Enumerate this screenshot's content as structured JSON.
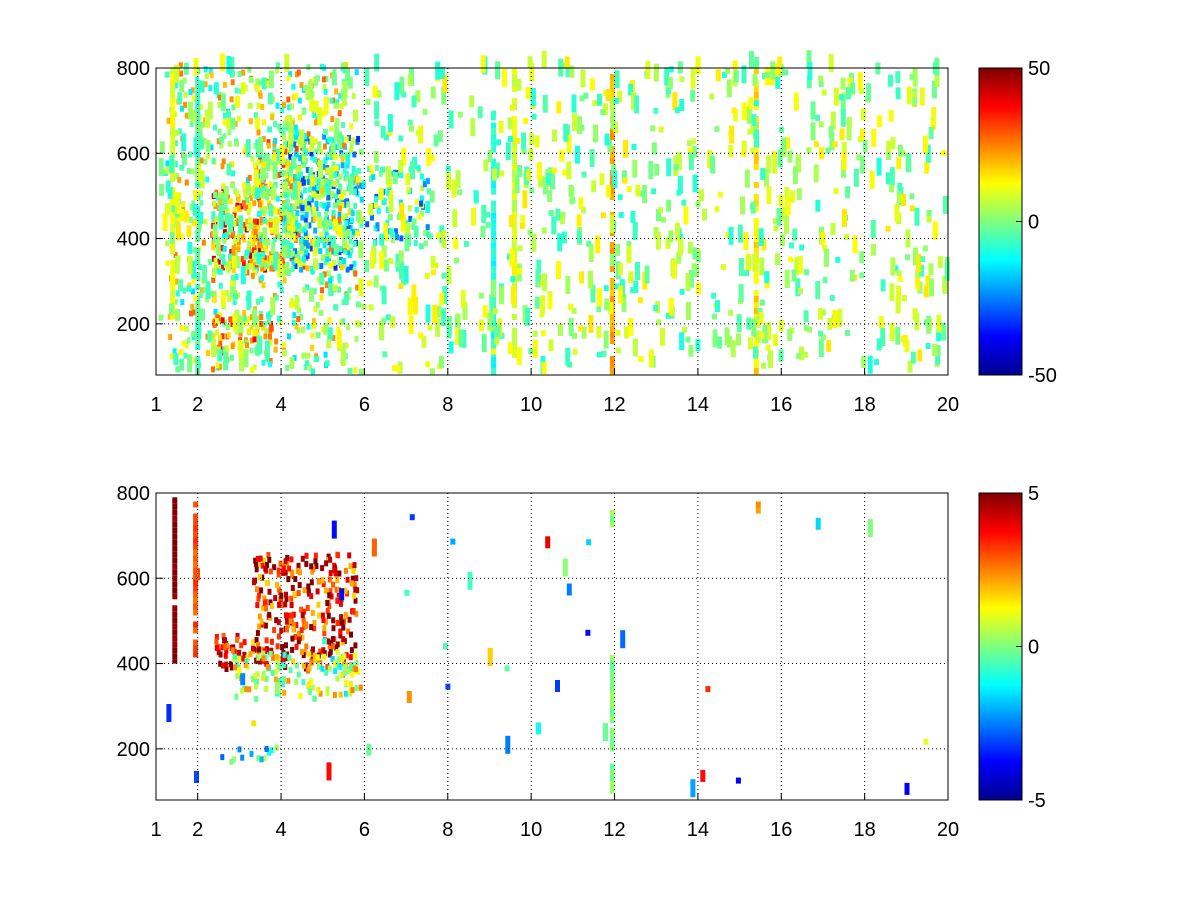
{
  "chart_data": [
    {
      "type": "heatmap",
      "title": "",
      "xlabel": "",
      "ylabel": "",
      "xlim": [
        1,
        20
      ],
      "ylim": [
        80,
        800
      ],
      "x_ticks": [
        1,
        2,
        4,
        6,
        8,
        10,
        12,
        14,
        16,
        18,
        20
      ],
      "x_tick_labels": [
        "1",
        "2",
        "4",
        "6",
        "8",
        "10",
        "12",
        "14",
        "16",
        "18",
        "20"
      ],
      "y_ticks": [
        200,
        400,
        600,
        800
      ],
      "y_tick_labels": [
        "200",
        "400",
        "600",
        "800"
      ],
      "grid": true,
      "colormap": "jet",
      "clim": [
        -50,
        50
      ],
      "colorbar_ticks": [
        50,
        0,
        -50
      ],
      "colorbar_tick_labels": [
        "50",
        "0",
        "-50"
      ],
      "dense_cells": [
        {
          "x0": 2.3,
          "x1": 3.6,
          "y0": 320,
          "y1": 520,
          "value": 25,
          "density": 0.75
        },
        {
          "x0": 3.3,
          "x1": 4.6,
          "y0": 320,
          "y1": 620,
          "value": 12,
          "density": 0.7
        },
        {
          "x0": 4.0,
          "x1": 5.8,
          "y0": 320,
          "y1": 640,
          "value": -12,
          "density": 0.7
        },
        {
          "x0": 5.8,
          "x1": 7.5,
          "y0": 380,
          "y1": 560,
          "value": -8,
          "density": 0.4
        },
        {
          "x0": 2.3,
          "x1": 3.8,
          "y0": 120,
          "y1": 220,
          "value": 18,
          "density": 0.5
        },
        {
          "x0": 1.2,
          "x1": 5.8,
          "y0": 80,
          "y1": 800,
          "value": 6,
          "density": 0.25
        }
      ],
      "stripes": [
        {
          "x": 1.4,
          "y0": 210,
          "y1": 800,
          "value": 10
        },
        {
          "x": 2.0,
          "y0": 80,
          "y1": 800,
          "value": -5
        },
        {
          "x": 9.1,
          "y0": 80,
          "y1": 700,
          "value": -10
        },
        {
          "x": 9.6,
          "y0": 120,
          "y1": 800,
          "value": 8
        },
        {
          "x": 11.95,
          "y0": 80,
          "y1": 800,
          "value": 20
        },
        {
          "x": 15.4,
          "y0": 80,
          "y1": 800,
          "value": 15
        }
      ],
      "scatter_value_range": [
        -10,
        15
      ]
    },
    {
      "type": "heatmap",
      "title": "",
      "xlabel": "",
      "ylabel": "",
      "xlim": [
        1,
        20
      ],
      "ylim": [
        80,
        800
      ],
      "x_ticks": [
        1,
        2,
        4,
        6,
        8,
        10,
        12,
        14,
        16,
        18,
        20
      ],
      "x_tick_labels": [
        "1",
        "2",
        "4",
        "6",
        "8",
        "10",
        "12",
        "14",
        "16",
        "18",
        "20"
      ],
      "y_ticks": [
        200,
        400,
        600,
        800
      ],
      "y_tick_labels": [
        "200",
        "400",
        "600",
        "800"
      ],
      "grid": true,
      "colormap": "jet",
      "clim": [
        -5,
        5
      ],
      "colorbar_ticks": [
        5,
        0,
        -5
      ],
      "colorbar_tick_labels": [
        "5",
        "0",
        "-5"
      ],
      "dense_cells": [
        {
          "x0": 2.4,
          "x1": 3.4,
          "y0": 380,
          "y1": 460,
          "value": 3.5,
          "density": 0.7
        },
        {
          "x0": 3.3,
          "x1": 5.8,
          "y0": 380,
          "y1": 650,
          "value": 3.8,
          "density": 0.6
        },
        {
          "x0": 2.8,
          "x1": 5.9,
          "y0": 310,
          "y1": 420,
          "value": 0.5,
          "density": 0.5
        },
        {
          "x0": 2.4,
          "x1": 3.9,
          "y0": 160,
          "y1": 200,
          "value": -1.5,
          "density": 0.3
        }
      ],
      "stripes": [
        {
          "x": 1.45,
          "y0": 400,
          "y1": 790,
          "value": 5
        },
        {
          "x": 1.95,
          "y0": 410,
          "y1": 780,
          "value": 3
        },
        {
          "x": 11.95,
          "y0": 80,
          "y1": 250,
          "value": 0
        },
        {
          "x": 11.95,
          "y0": 260,
          "y1": 420,
          "value": 0
        },
        {
          "x": 11.95,
          "y0": 720,
          "y1": 760,
          "value": 0
        },
        {
          "x": 15.45,
          "y0": 750,
          "y1": 780,
          "value": 2
        }
      ],
      "scatter_value_range": [
        -4,
        4
      ]
    }
  ]
}
